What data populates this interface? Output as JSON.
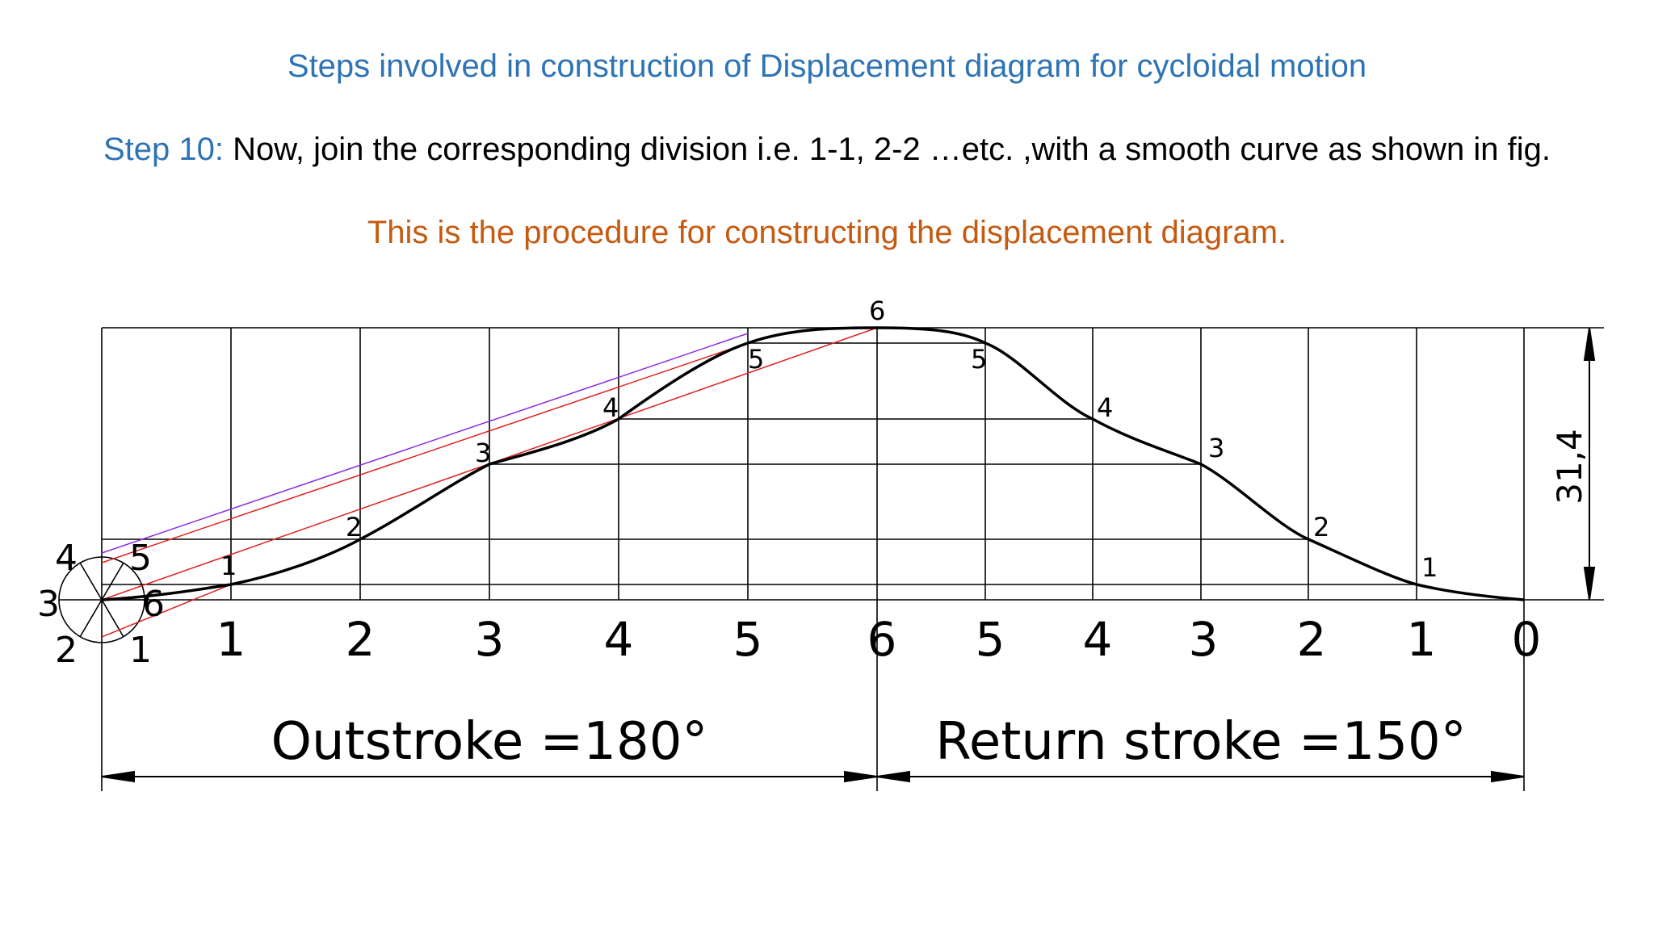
{
  "heading": "Steps involved in construction of Displacement diagram for cycloidal motion",
  "step": {
    "label": "Step 10:",
    "text": " Now, join the corresponding division i.e. 1-1, 2-2 …etc. ,with a smooth curve as shown in fig."
  },
  "note": "This is the procedure for constructing the displacement diagram.",
  "colors": {
    "heading": "#2e74b5",
    "step_label": "#2e74b5",
    "note": "#c55a11",
    "curve": "#000000",
    "red_line": "#e02020",
    "purple_line": "#8a2be2"
  },
  "diagram": {
    "circle_labels": [
      "4",
      "5",
      "3",
      "6",
      "2",
      "1"
    ],
    "outstroke_division_labels": [
      "1",
      "2",
      "3",
      "4",
      "5",
      "6"
    ],
    "return_division_labels": [
      "5",
      "4",
      "3",
      "2",
      "1",
      "0"
    ],
    "outstroke_point_labels": [
      "1",
      "2",
      "3",
      "4",
      "5"
    ],
    "return_point_labels": [
      "5",
      "4",
      "3",
      "2",
      "1"
    ],
    "top_point_label": "6",
    "lift_dimension": "31,4",
    "outstroke_label": "Outstroke =180°",
    "return_label": "Return stroke =150°"
  }
}
